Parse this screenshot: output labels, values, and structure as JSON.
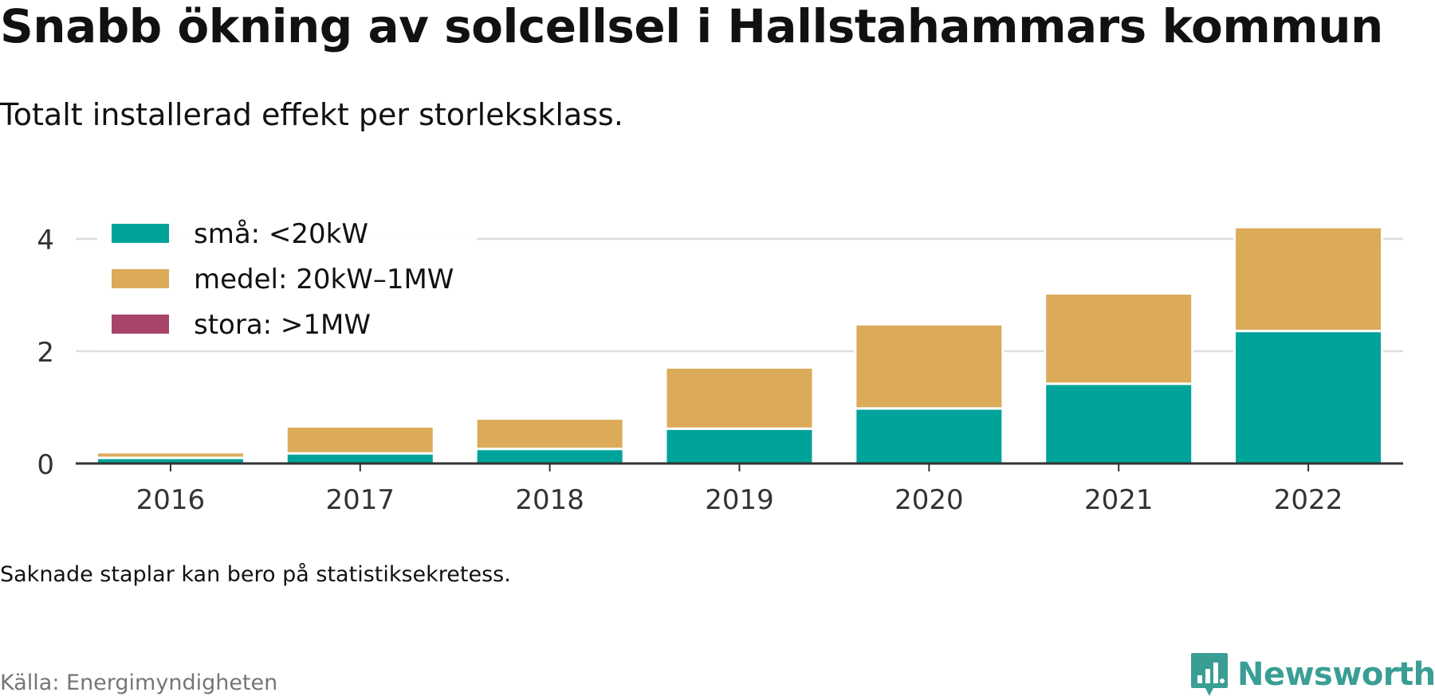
{
  "title": "Snabb ökning av solcellsel i Hallstahammars kommun",
  "subtitle": "Totalt installerad effekt per storleksklass.",
  "note": "Saknade staplar kan bero på statistiksekretess.",
  "source": "Källa: Energimyndigheten",
  "logo": {
    "text": "Newsworthy",
    "icon": "newsworthy-chart-icon"
  },
  "colors": {
    "sma": "#00a39a",
    "medel": "#dbab5a",
    "stora": "#a8446a",
    "grid": "#dedede",
    "axis": "#333333",
    "logo": "#3a9e95"
  },
  "chart_data": {
    "type": "bar",
    "stacked": true,
    "categories": [
      "2016",
      "2017",
      "2018",
      "2019",
      "2020",
      "2021",
      "2022"
    ],
    "series": [
      {
        "name": "små: <20kW",
        "color": "#00a39a",
        "values": [
          0.1,
          0.18,
          0.26,
          0.62,
          0.98,
          1.42,
          2.36
        ]
      },
      {
        "name": "medel: 20kW–1MW",
        "color": "#dbab5a",
        "values": [
          0.1,
          0.48,
          0.54,
          1.09,
          1.5,
          1.61,
          1.85
        ]
      },
      {
        "name": "stora: >1MW",
        "color": "#a8446a",
        "values": [
          0,
          0,
          0,
          0,
          0,
          0,
          0
        ]
      }
    ],
    "yticks": [
      "0",
      "2",
      "4"
    ],
    "ylim": [
      0,
      4.4
    ],
    "grid": true,
    "legend_position": "top-left"
  }
}
